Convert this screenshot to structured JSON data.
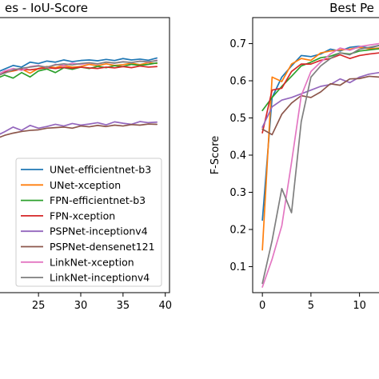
{
  "colors": {
    "UNet-efficientnet-b3": "#1f77b4",
    "UNet-xception": "#ff7f0e",
    "FPN-efficientnet-b3": "#2ca02c",
    "FPN-xception": "#d62728",
    "PSPNet-inceptionv4": "#9467bd",
    "PSPNet-densenet121": "#8c564b",
    "LinkNet-xception": "#e377c2",
    "LinkNet-inceptionv4": "#7f7f7f"
  },
  "chart_data": [
    {
      "type": "line",
      "title": "es - IoU-Score",
      "xlabel": "",
      "ylabel": "",
      "xlim": [
        19.5,
        40.5
      ],
      "ylim": [
        0.0,
        1.0
      ],
      "x_ticks": [
        25,
        30,
        35,
        40
      ],
      "y_ticks": [],
      "grid": false,
      "legend": {
        "position": "bottom-right",
        "entries": [
          "UNet-efficientnet-b3",
          "UNet-xception",
          "FPN-efficientnet-b3",
          "FPN-xception",
          "PSPNet-inceptionv4",
          "PSPNet-densenet121",
          "LinkNet-xception",
          "LinkNet-inceptionv4"
        ]
      },
      "x": [
        20,
        21,
        22,
        23,
        24,
        25,
        26,
        27,
        28,
        29,
        30,
        31,
        32,
        33,
        34,
        35,
        36,
        37,
        38,
        39
      ],
      "series": [
        {
          "name": "UNet-efficientnet-b3",
          "values": [
            0.8,
            0.813,
            0.826,
            0.82,
            0.838,
            0.833,
            0.842,
            0.838,
            0.846,
            0.84,
            0.844,
            0.846,
            0.843,
            0.848,
            0.844,
            0.851,
            0.846,
            0.849,
            0.845,
            0.853
          ]
        },
        {
          "name": "UNet-xception",
          "values": [
            0.785,
            0.8,
            0.806,
            0.813,
            0.798,
            0.815,
            0.822,
            0.818,
            0.826,
            0.82,
            0.822,
            0.83,
            0.825,
            0.832,
            0.826,
            0.829,
            0.834,
            0.829,
            0.836,
            0.833
          ]
        },
        {
          "name": "FPN-efficientnet-b3",
          "values": [
            0.778,
            0.791,
            0.78,
            0.8,
            0.784,
            0.806,
            0.813,
            0.8,
            0.818,
            0.812,
            0.82,
            0.815,
            0.823,
            0.818,
            0.825,
            0.822,
            0.83,
            0.826,
            0.83,
            0.835
          ]
        },
        {
          "name": "FPN-xception",
          "values": [
            0.794,
            0.802,
            0.808,
            0.812,
            0.81,
            0.814,
            0.818,
            0.815,
            0.819,
            0.816,
            0.82,
            0.817,
            0.815,
            0.82,
            0.817,
            0.822,
            0.818,
            0.824,
            0.82,
            0.822
          ]
        },
        {
          "name": "PSPNet-inceptionv4",
          "values": [
            0.57,
            0.585,
            0.602,
            0.59,
            0.608,
            0.598,
            0.604,
            0.612,
            0.606,
            0.615,
            0.609,
            0.613,
            0.618,
            0.61,
            0.621,
            0.616,
            0.612,
            0.622,
            0.618,
            0.62
          ]
        },
        {
          "name": "PSPNet-densenet121",
          "values": [
            0.56,
            0.572,
            0.58,
            0.586,
            0.59,
            0.592,
            0.598,
            0.6,
            0.602,
            0.598,
            0.606,
            0.603,
            0.608,
            0.604,
            0.609,
            0.606,
            0.611,
            0.609,
            0.613,
            0.612
          ]
        },
        {
          "name": "LinkNet-xception",
          "values": [
            0.79,
            0.806,
            0.815,
            0.808,
            0.822,
            0.826,
            0.818,
            0.83,
            0.826,
            0.834,
            0.83,
            0.835,
            0.831,
            0.838,
            0.834,
            0.84,
            0.836,
            0.842,
            0.838,
            0.845
          ]
        },
        {
          "name": "LinkNet-inceptionv4",
          "values": [
            0.788,
            0.798,
            0.81,
            0.816,
            0.82,
            0.824,
            0.82,
            0.828,
            0.832,
            0.828,
            0.833,
            0.836,
            0.832,
            0.838,
            0.835,
            0.839,
            0.837,
            0.841,
            0.84,
            0.843
          ]
        }
      ]
    },
    {
      "type": "line",
      "title": "Best Pe",
      "xlabel": "",
      "ylabel": "F-Score",
      "xlim": [
        -1.0,
        12.5
      ],
      "ylim": [
        0.03,
        0.77
      ],
      "x_ticks": [
        0,
        5,
        10
      ],
      "x_tick_labels": [
        "0",
        "5",
        "10"
      ],
      "y_ticks": [
        0.1,
        0.2,
        0.3,
        0.4,
        0.5,
        0.6,
        0.7
      ],
      "grid": false,
      "legend": null,
      "x": [
        0,
        1,
        2,
        3,
        4,
        5,
        6,
        7,
        8,
        9,
        10,
        11,
        12
      ],
      "series": [
        {
          "name": "UNet-efficientnet-b3",
          "values": [
            0.225,
            0.555,
            0.61,
            0.64,
            0.668,
            0.665,
            0.672,
            0.685,
            0.68,
            0.69,
            0.693,
            0.688,
            0.695
          ]
        },
        {
          "name": "UNet-xception",
          "values": [
            0.145,
            0.61,
            0.598,
            0.645,
            0.66,
            0.655,
            0.675,
            0.68,
            0.683,
            0.685,
            0.69,
            0.686,
            0.688
          ]
        },
        {
          "name": "FPN-efficientnet-b3",
          "values": [
            0.52,
            0.555,
            0.585,
            0.612,
            0.64,
            0.65,
            0.662,
            0.666,
            0.675,
            0.672,
            0.68,
            0.683,
            0.686
          ]
        },
        {
          "name": "FPN-xception",
          "values": [
            0.46,
            0.575,
            0.58,
            0.625,
            0.645,
            0.645,
            0.655,
            0.66,
            0.67,
            0.66,
            0.668,
            0.672,
            0.675
          ]
        },
        {
          "name": "PSPNet-inceptionv4",
          "values": [
            0.475,
            0.53,
            0.548,
            0.555,
            0.565,
            0.575,
            0.585,
            0.59,
            0.605,
            0.595,
            0.61,
            0.618,
            0.622
          ]
        },
        {
          "name": "PSPNet-densenet121",
          "values": [
            0.47,
            0.455,
            0.51,
            0.54,
            0.56,
            0.555,
            0.57,
            0.592,
            0.588,
            0.605,
            0.606,
            0.612,
            0.61
          ]
        },
        {
          "name": "LinkNet-xception",
          "values": [
            0.045,
            0.12,
            0.21,
            0.38,
            0.56,
            0.625,
            0.65,
            0.672,
            0.688,
            0.682,
            0.692,
            0.696,
            0.7
          ]
        },
        {
          "name": "LinkNet-inceptionv4",
          "values": [
            0.055,
            0.17,
            0.31,
            0.245,
            0.49,
            0.61,
            0.64,
            0.66,
            0.675,
            0.67,
            0.685,
            0.69,
            0.695
          ]
        }
      ]
    }
  ]
}
